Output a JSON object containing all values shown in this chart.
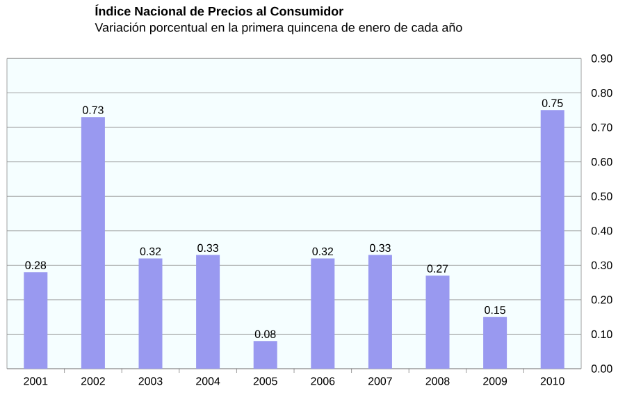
{
  "chart_data": {
    "type": "bar",
    "title": "Índice Nacional de Precios al Consumidor",
    "subtitle": "Variación porcentual en la primera quincena de enero de cada año",
    "categories": [
      "2001",
      "2002",
      "2003",
      "2004",
      "2005",
      "2006",
      "2007",
      "2008",
      "2009",
      "2010"
    ],
    "values": [
      0.28,
      0.73,
      0.32,
      0.33,
      0.08,
      0.32,
      0.33,
      0.27,
      0.15,
      0.75
    ],
    "value_labels": [
      "0.28",
      "0.73",
      "0.32",
      "0.33",
      "0.08",
      "0.32",
      "0.33",
      "0.27",
      "0.15",
      "0.75"
    ],
    "color": "#9999f0",
    "ylim": [
      0,
      0.9
    ],
    "yticks": [
      {
        "value": 0,
        "label": "0.00"
      },
      {
        "value": 0.1,
        "label": "0.10"
      },
      {
        "value": 0.2,
        "label": "0.20"
      },
      {
        "value": 0.3,
        "label": "0.30"
      },
      {
        "value": 0.4,
        "label": "0.40"
      },
      {
        "value": 0.5,
        "label": "0.50"
      },
      {
        "value": 0.6,
        "label": "0.60"
      },
      {
        "value": 0.7,
        "label": "0.70"
      },
      {
        "value": 0.8,
        "label": "0.80"
      },
      {
        "value": 0.9,
        "label": "0.90"
      }
    ],
    "grid": "y"
  }
}
